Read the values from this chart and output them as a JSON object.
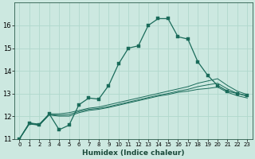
{
  "xlabel": "Humidex (Indice chaleur)",
  "xlim": [
    -0.5,
    23.5
  ],
  "ylim": [
    11,
    17
  ],
  "yticks": [
    11,
    12,
    13,
    14,
    15,
    16
  ],
  "xticks": [
    0,
    1,
    2,
    3,
    4,
    5,
    6,
    7,
    8,
    9,
    10,
    11,
    12,
    13,
    14,
    15,
    16,
    17,
    18,
    19,
    20,
    21,
    22,
    23
  ],
  "bg_color": "#cce8e0",
  "grid_color": "#b0d8cc",
  "line_color": "#1a6b5a",
  "lines": [
    {
      "x": [
        0,
        1,
        2,
        3,
        4,
        5,
        6,
        7,
        8,
        9,
        10,
        11,
        12,
        13,
        14,
        15,
        16,
        17,
        18,
        19,
        20,
        21,
        22,
        23
      ],
      "y": [
        11.0,
        11.7,
        11.6,
        12.1,
        11.4,
        11.6,
        12.5,
        12.8,
        12.75,
        13.35,
        14.3,
        15.0,
        15.1,
        16.0,
        16.3,
        16.3,
        15.5,
        15.4,
        14.4,
        13.8,
        13.35,
        13.1,
        13.0,
        12.9
      ],
      "marker": true
    },
    {
      "x": [
        0,
        1,
        2,
        3,
        4,
        5,
        6,
        7,
        8,
        9,
        10,
        11,
        12,
        13,
        14,
        15,
        16,
        17,
        18,
        19,
        20,
        21,
        22,
        23
      ],
      "y": [
        11.0,
        11.7,
        11.65,
        12.1,
        12.1,
        12.15,
        12.25,
        12.35,
        12.4,
        12.5,
        12.6,
        12.7,
        12.8,
        12.9,
        13.0,
        13.1,
        13.2,
        13.3,
        13.45,
        13.55,
        13.65,
        13.35,
        13.1,
        12.95
      ],
      "marker": false
    },
    {
      "x": [
        0,
        1,
        2,
        3,
        4,
        5,
        6,
        7,
        8,
        9,
        10,
        11,
        12,
        13,
        14,
        15,
        16,
        17,
        18,
        19,
        20,
        21,
        22,
        23
      ],
      "y": [
        11.0,
        11.65,
        11.6,
        12.05,
        12.0,
        12.0,
        12.15,
        12.25,
        12.3,
        12.38,
        12.48,
        12.58,
        12.68,
        12.78,
        12.88,
        12.95,
        13.05,
        13.1,
        13.18,
        13.22,
        13.28,
        13.05,
        12.9,
        12.8
      ],
      "marker": false
    },
    {
      "x": [
        0,
        1,
        2,
        3,
        4,
        5,
        6,
        7,
        8,
        9,
        10,
        11,
        12,
        13,
        14,
        15,
        16,
        17,
        18,
        19,
        20,
        21,
        22,
        23
      ],
      "y": [
        11.0,
        11.67,
        11.62,
        12.07,
        12.04,
        12.07,
        12.2,
        12.3,
        12.34,
        12.42,
        12.52,
        12.62,
        12.72,
        12.82,
        12.92,
        13.0,
        13.1,
        13.18,
        13.3,
        13.38,
        13.45,
        13.2,
        13.0,
        12.88
      ],
      "marker": false
    }
  ]
}
